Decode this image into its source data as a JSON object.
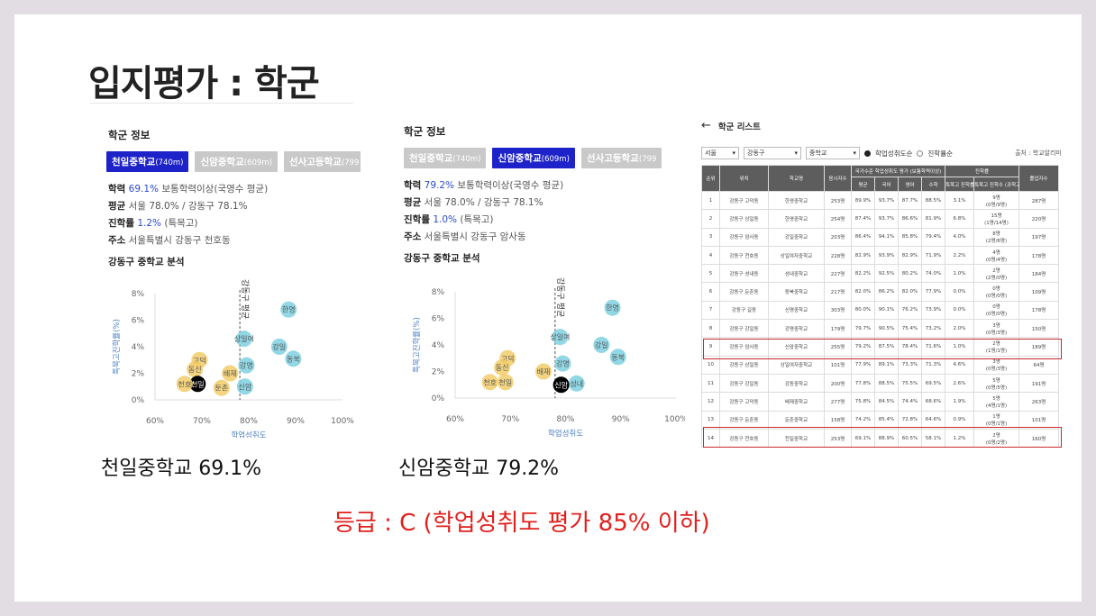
{
  "slide_title": "입지평가 : 학군",
  "left_panel": {
    "section_title": "학군 정보",
    "tabs": [
      {
        "name": "천일중학교",
        "dist": "(740m)",
        "active": true
      },
      {
        "name": "신암중학교",
        "dist": "(609m)",
        "active": false
      },
      {
        "name": "선사고등학교",
        "dist": "(799",
        "active": false
      }
    ],
    "info": {
      "academic_label": "학력",
      "academic_value": "69.1%",
      "academic_desc": "보통학력이상(국영수 평균)",
      "avg_label": "평균",
      "avg_value": "서울 78.0% / 강동구 78.1%",
      "advance_label": "진학률",
      "advance_value": "1.2%",
      "advance_desc": "(특목고)",
      "address_label": "주소",
      "address_value": "서울특별시 강동구 천호동"
    },
    "analysis_title": "강동구 중학교 분석",
    "caption": "천일중학교 69.1%"
  },
  "middle_panel": {
    "section_title": "학군 정보",
    "tabs": [
      {
        "name": "천일중학교",
        "dist": "(740m)",
        "active": false
      },
      {
        "name": "신암중학교",
        "dist": "(609m)",
        "active": true
      },
      {
        "name": "선사고등학교",
        "dist": "(799",
        "active": false
      }
    ],
    "info": {
      "academic_label": "학력",
      "academic_value": "79.2%",
      "academic_desc": "보통학력이상(국영수 평균)",
      "avg_label": "평균",
      "avg_value": "서울 78.0% / 강동구 78.1%",
      "advance_label": "진학률",
      "advance_value": "1.0%",
      "advance_desc": "(특목고)",
      "address_label": "주소",
      "address_value": "서울특별시 강동구 암사동"
    },
    "analysis_title": "강동구 중학교 분석",
    "caption": "신암중학교 79.2%"
  },
  "grade_text": "등급 : C (학업성취도 평가 85% 이하)",
  "chart_data": [
    {
      "type": "scatter",
      "title": "강동구 중학교 분석",
      "xlabel": "학업성취도",
      "ylabel": "특목고진학률(%)",
      "xlim": [
        60,
        100
      ],
      "ylim": [
        0,
        8
      ],
      "xticks": [
        "60%",
        "70%",
        "80%",
        "90%",
        "100%"
      ],
      "yticks": [
        "0%",
        "2%",
        "4%",
        "6%",
        "8%"
      ],
      "reference_line": {
        "x": 78.1,
        "label": "강동구 평균"
      },
      "highlight": "천일",
      "points": [
        {
          "label": "한영",
          "x": 88.5,
          "y": 6.8,
          "group": "above"
        },
        {
          "label": "상일여",
          "x": 79.0,
          "y": 4.6,
          "group": "above"
        },
        {
          "label": "강일",
          "x": 86.5,
          "y": 4.0,
          "group": "above"
        },
        {
          "label": "동북",
          "x": 89.5,
          "y": 3.1,
          "group": "above"
        },
        {
          "label": "강명",
          "x": 79.5,
          "y": 2.6,
          "group": "above"
        },
        {
          "label": "신암",
          "x": 79.2,
          "y": 1.0,
          "group": "above"
        },
        {
          "label": "고덕",
          "x": 69.5,
          "y": 3.0,
          "group": "below"
        },
        {
          "label": "동신",
          "x": 68.5,
          "y": 2.3,
          "group": "below"
        },
        {
          "label": "천일",
          "x": 69.1,
          "y": 1.2,
          "group": "below"
        },
        {
          "label": "천호",
          "x": 66.3,
          "y": 1.2,
          "group": "below"
        },
        {
          "label": "배재",
          "x": 76.0,
          "y": 2.0,
          "group": "below"
        },
        {
          "label": "둔촌",
          "x": 74.2,
          "y": 0.9,
          "group": "below"
        }
      ]
    },
    {
      "type": "scatter",
      "title": "강동구 중학교 분석",
      "xlabel": "학업성취도",
      "ylabel": "특목고진학률(%)",
      "xlim": [
        60,
        100
      ],
      "ylim": [
        0,
        8
      ],
      "xticks": [
        "60%",
        "70%",
        "80%",
        "90%",
        "100%"
      ],
      "yticks": [
        "0%",
        "2%",
        "4%",
        "6%",
        "8%"
      ],
      "reference_line": {
        "x": 78.1,
        "label": "강동구 평균"
      },
      "highlight": "신암",
      "points": [
        {
          "label": "한영",
          "x": 88.5,
          "y": 6.8,
          "group": "above"
        },
        {
          "label": "상일여",
          "x": 79.0,
          "y": 4.6,
          "group": "above"
        },
        {
          "label": "강일",
          "x": 86.5,
          "y": 4.0,
          "group": "above"
        },
        {
          "label": "동북",
          "x": 89.5,
          "y": 3.1,
          "group": "above"
        },
        {
          "label": "강명",
          "x": 79.5,
          "y": 2.6,
          "group": "above"
        },
        {
          "label": "성내",
          "x": 82.0,
          "y": 1.1,
          "group": "above"
        },
        {
          "label": "신암",
          "x": 79.2,
          "y": 1.0,
          "group": "above"
        },
        {
          "label": "고덕",
          "x": 69.5,
          "y": 3.0,
          "group": "below"
        },
        {
          "label": "동신",
          "x": 68.5,
          "y": 2.3,
          "group": "below"
        },
        {
          "label": "천일",
          "x": 69.1,
          "y": 1.2,
          "group": "below"
        },
        {
          "label": "천호",
          "x": 66.3,
          "y": 1.2,
          "group": "below"
        },
        {
          "label": "배재",
          "x": 76.0,
          "y": 2.0,
          "group": "below"
        }
      ]
    }
  ],
  "school_list": {
    "title": "학군 리스트",
    "filters": {
      "region": "서울",
      "district": "강동구",
      "level": "중학교"
    },
    "sort_options": [
      "학업성취도순",
      "진학률순"
    ],
    "source": "출처 : 학교알리미",
    "headers_top": [
      "순위",
      "위치",
      "학교명",
      "응시자수",
      "국가수준 학업성취도 평가 (보통학력이상)",
      "진학률",
      "졸업자수"
    ],
    "headers_sub": [
      "평균",
      "국어",
      "영어",
      "수학",
      "특목고 진학률",
      "특목고 진학수 (과학고/외고/국제고)"
    ],
    "rows": [
      [
        "1",
        "강동구 고덕동",
        "한영중학교",
        "253명",
        "89.9%",
        "93.7%",
        "87.7%",
        "88.5%",
        "3.1%",
        "9명\n(0명/9명)",
        "287명"
      ],
      [
        "2",
        "강동구 상일동",
        "한영중학교",
        "254명",
        "87.4%",
        "93.7%",
        "86.6%",
        "81.9%",
        "6.8%",
        "15명\n(1명/14명)",
        "220명"
      ],
      [
        "3",
        "강동구 암사동",
        "강일중학교",
        "203명",
        "86.4%",
        "94.1%",
        "85.8%",
        "79.4%",
        "4.0%",
        "8명\n(2명/6명)",
        "197명"
      ],
      [
        "4",
        "강동구 천호동",
        "상일여자중학교",
        "228명",
        "82.9%",
        "93.9%",
        "82.9%",
        "71.9%",
        "2.2%",
        "4명\n(0명/4명)",
        "178명"
      ],
      [
        "5",
        "강동구 성내동",
        "성내중학교",
        "227명",
        "82.2%",
        "92.5%",
        "80.2%",
        "74.0%",
        "1.0%",
        "2명\n(2명/0명)",
        "184명"
      ],
      [
        "6",
        "강동구 둔촌동",
        "동북중학교",
        "217명",
        "82.0%",
        "86.2%",
        "82.0%",
        "77.9%",
        "0.0%",
        "0명\n(0명/0명)",
        "109명"
      ],
      [
        "7",
        "강동구 길동",
        "신명중학교",
        "303명",
        "80.0%",
        "90.1%",
        "76.2%",
        "73.9%",
        "0.0%",
        "0명\n(0명/0명)",
        "178명"
      ],
      [
        "8",
        "강동구 강일동",
        "강명중학교",
        "179명",
        "79.7%",
        "90.5%",
        "75.4%",
        "73.2%",
        "2.0%",
        "3명\n(0명/3명)",
        "150명"
      ],
      [
        "9",
        "강동구 암사동",
        "신암중학교",
        "255명",
        "79.2%",
        "87.5%",
        "78.4%",
        "71.6%",
        "1.0%",
        "2명\n(1명/1명)",
        "189명"
      ],
      [
        "10",
        "강동구 상일동",
        "상일여자중학교",
        "101명",
        "77.9%",
        "89.1%",
        "73.3%",
        "71.3%",
        "4.6%",
        "3명\n(0명/3명)",
        "64명"
      ],
      [
        "11",
        "강동구 강일동",
        "강동중학교",
        "200명",
        "77.8%",
        "88.5%",
        "75.5%",
        "69.5%",
        "2.6%",
        "5명\n(0명/5명)",
        "191명"
      ],
      [
        "12",
        "강동구 고덕동",
        "배재중학교",
        "277명",
        "75.8%",
        "84.5%",
        "74.4%",
        "68.6%",
        "1.9%",
        "5명\n(4명/1명)",
        "263명"
      ],
      [
        "13",
        "강동구 둔촌동",
        "둔촌중학교",
        "158명",
        "74.2%",
        "85.4%",
        "72.8%",
        "64.6%",
        "0.9%",
        "1명\n(0명/1명)",
        "101명"
      ],
      [
        "14",
        "강동구 천호동",
        "천일중학교",
        "253명",
        "69.1%",
        "88.9%",
        "60.5%",
        "58.1%",
        "1.2%",
        "2명\n(0명/2명)",
        "160명"
      ]
    ],
    "highlighted_rows": [
      9,
      14
    ]
  },
  "colors": {
    "title": "#222222",
    "active_tab": "#1e22c9",
    "inactive_tab": "#c9c9c9",
    "above_avg": "#7fd0e0",
    "below_avg": "#f2cd6a",
    "highlight_point": "#000000",
    "grade_text": "#e0201d",
    "row_highlight": "#c8282c",
    "table_header": "#5d5d5d"
  }
}
